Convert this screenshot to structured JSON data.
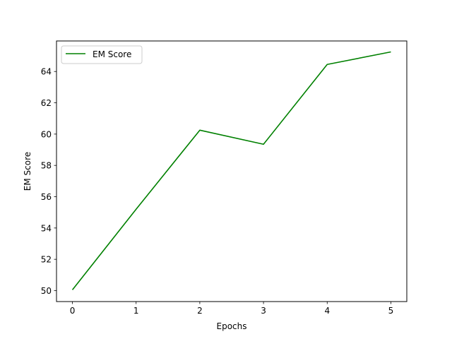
{
  "chart_data": {
    "type": "line",
    "title": "",
    "xlabel": "Epochs",
    "ylabel": "EM Score",
    "x": [
      0,
      1,
      2,
      3,
      4,
      5
    ],
    "series": [
      {
        "name": "EM Score",
        "color": "#008000",
        "values": [
          50.05,
          55.2,
          60.25,
          59.35,
          64.45,
          65.25
        ]
      }
    ],
    "xticks": [
      "0",
      "1",
      "2",
      "3",
      "4",
      "5"
    ],
    "yticks": [
      "50",
      "52",
      "54",
      "56",
      "58",
      "60",
      "62",
      "64"
    ],
    "xlim": [
      -0.25,
      5.25
    ],
    "ylim": [
      49.3,
      65.95
    ],
    "grid": false,
    "legend_position": "top-left"
  }
}
